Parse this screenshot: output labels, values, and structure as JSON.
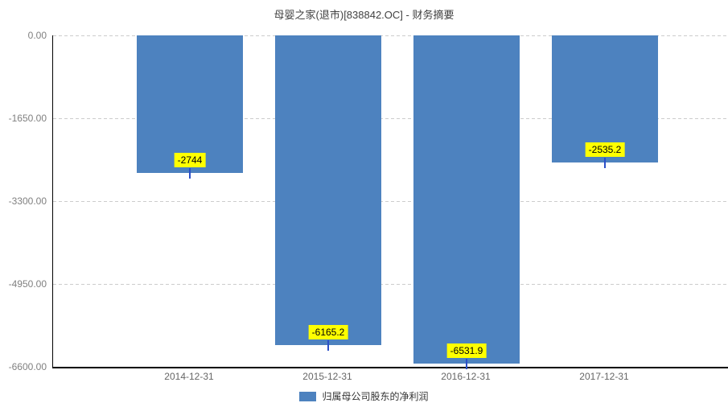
{
  "title": "母婴之家(退市)[838842.OC] - 财务摘要",
  "legend": {
    "label": "归属母公司股东的净利润",
    "swatch_color": "#4d82bf"
  },
  "chart_data": {
    "type": "bar",
    "title": "母婴之家(退市)[838842.OC] - 财务摘要",
    "series_name": "归属母公司股东的净利润",
    "categories": [
      "2014-12-31",
      "2015-12-31",
      "2016-12-31",
      "2017-12-31"
    ],
    "values": [
      -2744,
      -6165.2,
      -6531.9,
      -2535.2
    ],
    "value_labels": [
      "-2744",
      "-6165.2",
      "-6531.9",
      "-2535.2"
    ],
    "ylim": [
      -6600,
      0
    ],
    "yticks": [
      "0.00",
      "-1650.00",
      "-3300.00",
      "-4950.00",
      "-6600.00"
    ],
    "ytick_values": [
      0,
      -1650,
      -3300,
      -4950,
      -6600
    ],
    "grid": "horizontal-dashed",
    "legend_position": "bottom-center",
    "colors": {
      "bar": "#4d82bf",
      "value_label_bg": "#ffff00",
      "value_label_text": "#000000",
      "tick_connector": "#2b4fc8",
      "gridline": "#cccccc",
      "axis_line": "#000000",
      "y_tick_text": "#808080",
      "x_tick_text": "#666666",
      "title_text": "#404040"
    }
  }
}
